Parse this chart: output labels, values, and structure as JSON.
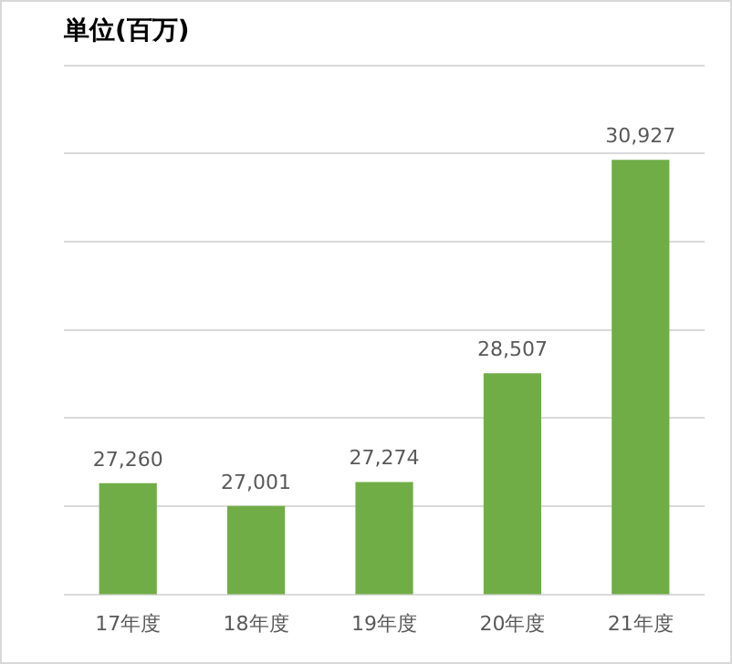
{
  "chart_data": {
    "type": "bar",
    "title": "単位(百万)",
    "categories": [
      "17年度",
      "18年度",
      "19年度",
      "20年度",
      "21年度"
    ],
    "values": [
      27260,
      27001,
      27274,
      28507,
      30927
    ],
    "value_labels": [
      "27,260",
      "27,001",
      "27,274",
      "28,507",
      "30,927"
    ],
    "color": "#70ad47",
    "tick_labels": "x",
    "grid": "y",
    "legend": false
  }
}
